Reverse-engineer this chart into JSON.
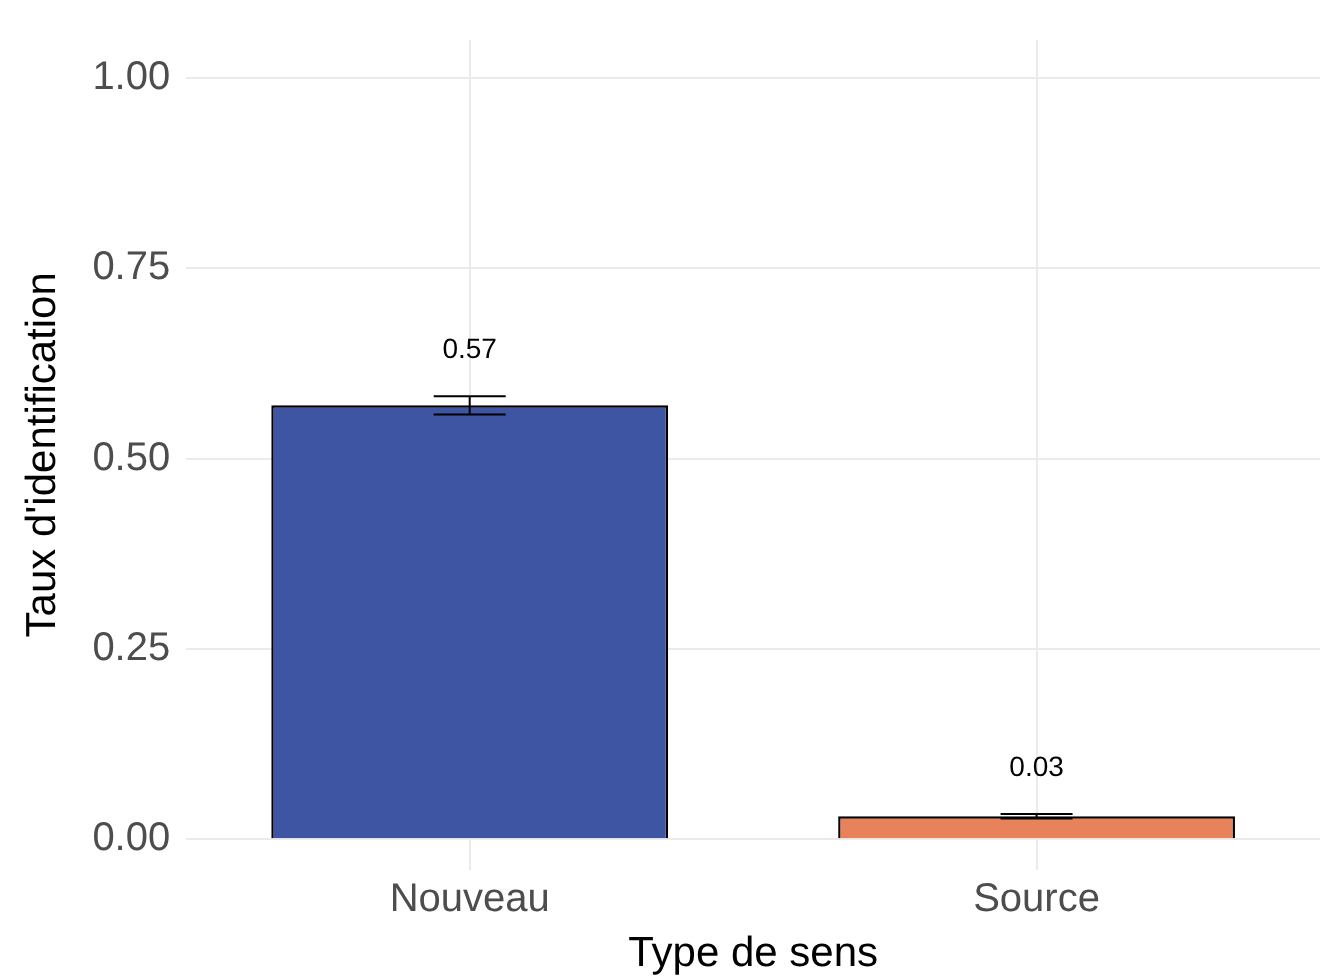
{
  "chart_data": {
    "type": "bar",
    "xlabel": "Type de sens",
    "ylabel": "Taux d'identification",
    "categories": [
      "Nouveau",
      "Source"
    ],
    "values": [
      0.57,
      0.03
    ],
    "colors": [
      "#3e55a3",
      "#e8825a"
    ],
    "errors": [
      0.012,
      0.003
    ],
    "data_labels": true,
    "ylim": [
      -0.04,
      1.05
    ],
    "yticks": [
      {
        "value": 0,
        "label": "0.00"
      },
      {
        "value": 0.25,
        "label": "0.25"
      },
      {
        "value": 0.5,
        "label": "0.50"
      },
      {
        "value": 0.75,
        "label": "0.75"
      },
      {
        "value": 1,
        "label": "1.00"
      }
    ],
    "grid": true,
    "legend": false
  }
}
